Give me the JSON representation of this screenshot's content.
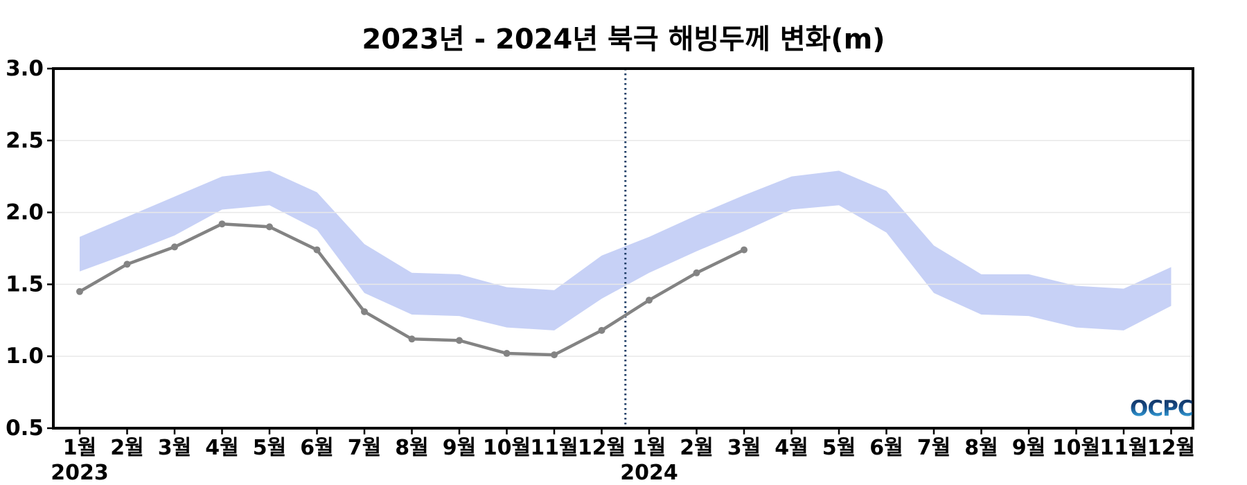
{
  "chart_data": {
    "type": "line",
    "title": "2023년 - 2024년 북극 해빙두께 변화(m)",
    "xlabel": "",
    "ylabel": "",
    "ylim": [
      0.5,
      3.0
    ],
    "yticks": [
      0.5,
      1.0,
      1.5,
      2.0,
      2.5,
      3.0
    ],
    "ytick_labels": [
      "0.5",
      "1.0",
      "1.5",
      "2.0",
      "2.5",
      "3.0"
    ],
    "grid": {
      "horizontal": true,
      "vertical": false,
      "color": "#e8e8e8"
    },
    "legend": "none",
    "x_month_labels": [
      "1월",
      "2월",
      "3월",
      "4월",
      "5월",
      "6월",
      "7월",
      "8월",
      "9월",
      "10월",
      "11월",
      "12월",
      "1월",
      "2월",
      "3월",
      "4월",
      "5월",
      "6월",
      "7월",
      "8월",
      "9월",
      "10월",
      "11월",
      "12월"
    ],
    "year_markers": [
      {
        "month_index": 0,
        "label": "2023"
      },
      {
        "month_index": 12,
        "label": "2024"
      }
    ],
    "divider": {
      "between_month_indices": [
        11,
        12
      ],
      "style": "dotted",
      "color": "#1e3d66"
    },
    "series": [
      {
        "id": "climatology-band",
        "type": "band",
        "color": "#c7d1f6",
        "upper": [
          1.83,
          1.97,
          2.11,
          2.25,
          2.29,
          2.14,
          1.78,
          1.58,
          1.57,
          1.48,
          1.46,
          1.7,
          1.83,
          1.98,
          2.12,
          2.25,
          2.29,
          2.15,
          1.77,
          1.57,
          1.57,
          1.49,
          1.47,
          1.62
        ],
        "lower": [
          1.59,
          1.71,
          1.84,
          2.02,
          2.05,
          1.88,
          1.44,
          1.29,
          1.28,
          1.2,
          1.18,
          1.4,
          1.58,
          1.73,
          1.87,
          2.02,
          2.05,
          1.86,
          1.44,
          1.29,
          1.28,
          1.2,
          1.18,
          1.35
        ]
      },
      {
        "id": "observed-thickness",
        "type": "line-markers",
        "color": "#838383",
        "values": [
          1.45,
          1.64,
          1.76,
          1.92,
          1.9,
          1.74,
          1.31,
          1.12,
          1.11,
          1.02,
          1.01,
          1.18,
          1.39,
          1.58,
          1.74,
          null,
          null,
          null,
          null,
          null,
          null,
          null,
          null,
          null
        ]
      }
    ]
  },
  "logo": {
    "text": "OCPC"
  }
}
